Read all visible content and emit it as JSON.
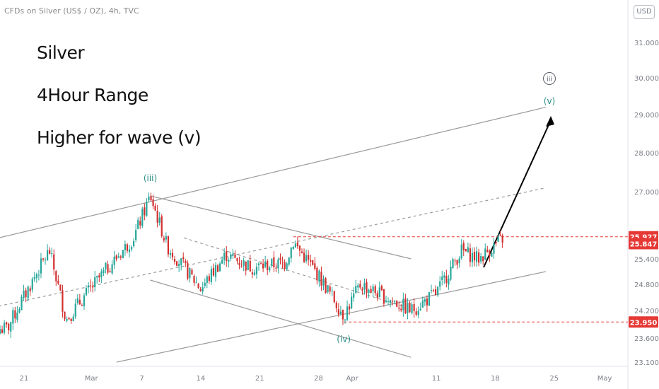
{
  "header": {
    "symbol_line": "CFDs on Silver (US$ / OZ), 4h, TVC",
    "currency_button": "USD"
  },
  "annotations": {
    "line1": "Silver",
    "line2": "4Hour Range",
    "line3": "Higher for wave (v)"
  },
  "colors": {
    "up_candle": "#26a69a",
    "down_candle": "#d32f2f",
    "level_line": "#e53935",
    "wave_label": "#2a8f86",
    "channel": "#9a9a9a"
  },
  "chart_data": {
    "type": "candlestick",
    "title": "CFDs on Silver (US$ / OZ), 4h, TVC",
    "y_axis": {
      "ticks": [
        "31.000",
        "30.000",
        "29.000",
        "28.000",
        "27.000",
        "25.400",
        "24.800",
        "24.200",
        "23.600",
        "23.100"
      ],
      "range": [
        22.9,
        31.6
      ]
    },
    "x_axis": {
      "ticks": [
        "21",
        "Mar",
        "7",
        "14",
        "21",
        "28",
        "Apr",
        "11",
        "18",
        "25",
        "May"
      ]
    },
    "price_labels": [
      {
        "value": "25.927",
        "style": "filled"
      },
      {
        "value": "25.847",
        "style": "filled"
      },
      {
        "value": "23.950",
        "style": "filled"
      }
    ],
    "wave_labels": [
      "(iii)",
      "(iv)",
      "(v)",
      "iii"
    ],
    "anchor_points": [
      {
        "date": "Feb 19",
        "price": 23.8
      },
      {
        "date": "Feb 24",
        "price": 25.6
      },
      {
        "date": "Feb 26",
        "price": 24.0
      },
      {
        "date": "Mar 3",
        "price": 25.2
      },
      {
        "date": "Mar 6",
        "price": 25.9
      },
      {
        "date": "Mar 8",
        "price": 26.9
      },
      {
        "date": "Mar 10",
        "price": 25.7
      },
      {
        "date": "Mar 14",
        "price": 24.7
      },
      {
        "date": "Mar 17",
        "price": 25.5
      },
      {
        "date": "Mar 20",
        "price": 25.2
      },
      {
        "date": "Mar 24",
        "price": 25.3
      },
      {
        "date": "Mar 25",
        "price": 25.8
      },
      {
        "date": "Mar 28",
        "price": 25.0
      },
      {
        "date": "Mar 31",
        "price": 24.1
      },
      {
        "date": "Apr 2",
        "price": 24.8
      },
      {
        "date": "Apr 5",
        "price": 24.5
      },
      {
        "date": "Apr 8",
        "price": 24.2
      },
      {
        "date": "Apr 11",
        "price": 24.6
      },
      {
        "date": "Apr 14",
        "price": 25.6
      },
      {
        "date": "Apr 16",
        "price": 25.4
      },
      {
        "date": "Apr 19",
        "price": 25.9
      }
    ]
  }
}
